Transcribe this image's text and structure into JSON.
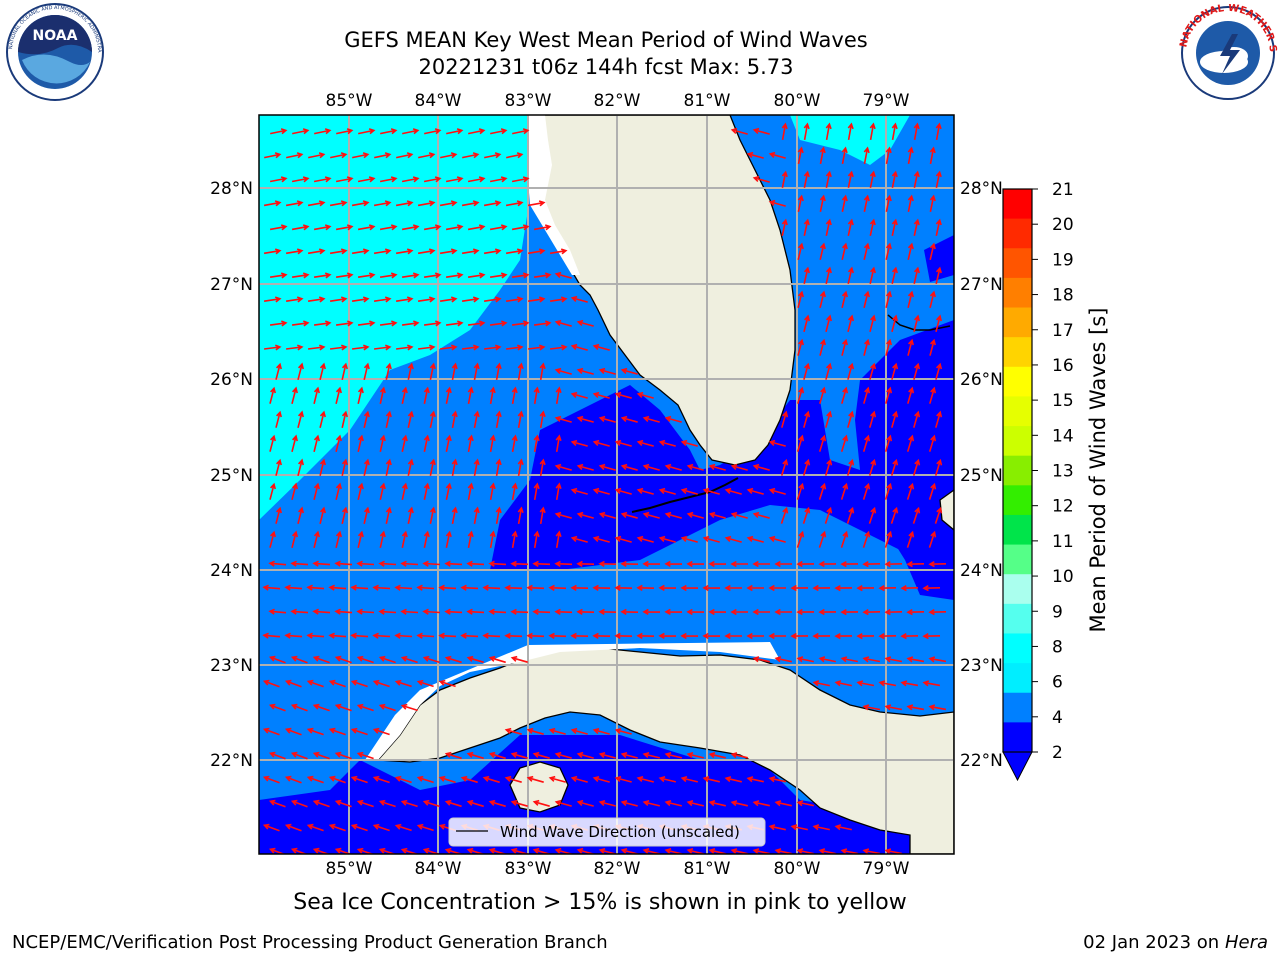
{
  "header": {
    "title_line1": "GEFS MEAN Key West Mean Period of Wind Waves",
    "title_line2": "20221231 t06z 144h fcst   Max: 5.73"
  },
  "logos": {
    "left": "noaa-logo",
    "left_text": "NOAA",
    "left_ring_text": "NATIONAL OCEANIC AND ATMOSPHERIC ADMINISTRATION · U.S. DEPARTMENT OF COMMERCE",
    "right": "nws-logo",
    "right_ring_text": "NATIONAL WEATHER SERVICE"
  },
  "map": {
    "lon_labels": [
      "85°W",
      "84°W",
      "83°W",
      "82°W",
      "81°W",
      "80°W",
      "79°W"
    ],
    "lat_labels": [
      "28°N",
      "27°N",
      "26°N",
      "25°N",
      "24°N",
      "23°N",
      "22°N"
    ],
    "legend_label": "Wind Wave Direction (unscaled)",
    "arrow_color": "#ff1010",
    "land_color": "#efefdf",
    "grid_color": "#b0b0b0"
  },
  "colorbar": {
    "label": "Mean Period of Wind Waves [s]",
    "ticks": [
      "21",
      "20",
      "19",
      "18",
      "17",
      "16",
      "15",
      "14",
      "13",
      "12",
      "11",
      "10",
      "9",
      "8",
      "6",
      "4",
      "2"
    ],
    "colors": [
      "#ff0000",
      "#ff2a00",
      "#ff5500",
      "#ff7f00",
      "#ffaa00",
      "#ffd400",
      "#ffff00",
      "#e6ff00",
      "#ccff00",
      "#88ee00",
      "#33ee00",
      "#00e44a",
      "#55ff88",
      "#aaffee",
      "#55ffee",
      "#00ffff",
      "#00eeff",
      "#0080ff",
      "#0000ff"
    ]
  },
  "notes": {
    "ice": "Sea Ice Concentration > 15% is shown in pink to yellow"
  },
  "footer": {
    "left": "NCEP/EMC/Verification Post Processing Product Generation Branch",
    "right_date": "02 Jan 2023 on ",
    "right_host": "Hera"
  }
}
